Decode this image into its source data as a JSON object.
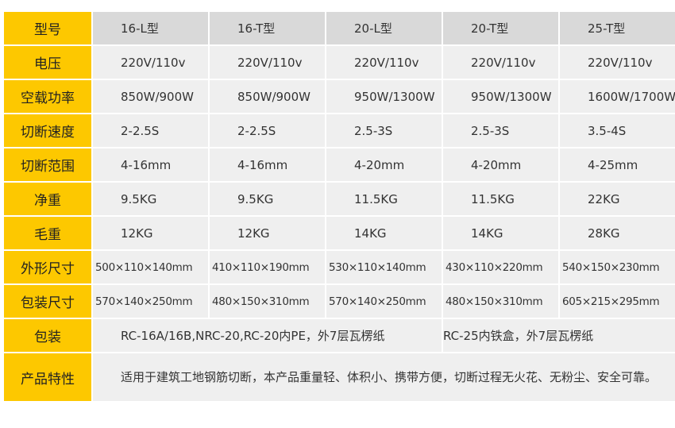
{
  "colors": {
    "label_bg": "#fdc800",
    "header_bg": "#d9d9d9",
    "cell_bg": "#efefef"
  },
  "header": {
    "label": "型号",
    "models": [
      "16-L型",
      "16-T型",
      "20-L型",
      "20-T型",
      "25-T型"
    ]
  },
  "rows": [
    {
      "label": "电压",
      "values": [
        "220V/110v",
        "220V/110v",
        "220V/110v",
        "220V/110v",
        "220V/110v"
      ]
    },
    {
      "label": "空载功率",
      "values": [
        "850W/900W",
        "850W/900W",
        "950W/1300W",
        "950W/1300W",
        "1600W/1700W"
      ]
    },
    {
      "label": "切断速度",
      "values": [
        "2-2.5S",
        "2-2.5S",
        "2.5-3S",
        "2.5-3S",
        "3.5-4S"
      ]
    },
    {
      "label": "切断范围",
      "values": [
        "4-16mm",
        "4-16mm",
        "4-20mm",
        "4-20mm",
        "4-25mm"
      ]
    },
    {
      "label": "净重",
      "values": [
        "9.5KG",
        "9.5KG",
        "11.5KG",
        "11.5KG",
        "22KG"
      ]
    },
    {
      "label": "毛重",
      "values": [
        "12KG",
        "12KG",
        "14KG",
        "14KG",
        "28KG"
      ]
    },
    {
      "label": "外形尺寸",
      "values": [
        "500×110×140mm",
        "410×110×190mm",
        "530×110×140mm",
        "430×110×220mm",
        "540×150×230mm"
      ]
    },
    {
      "label": "包装尺寸",
      "values": [
        "570×140×250mm",
        "480×150×310mm",
        "570×140×250mm",
        "480×150×310mm",
        "605×215×295mm"
      ]
    }
  ],
  "packaging": {
    "label": "包装",
    "left": "RC-16A/16B,NRC-20,RC-20内PE，外7层瓦楞纸",
    "right": "RC-25内铁盒，外7层瓦楞纸"
  },
  "features": {
    "label": "产品特性",
    "text": "适用于建筑工地钢筋切断，本产品重量轻、体积小、携带方便，切断过程无火花、无粉尘、安全可靠。"
  }
}
